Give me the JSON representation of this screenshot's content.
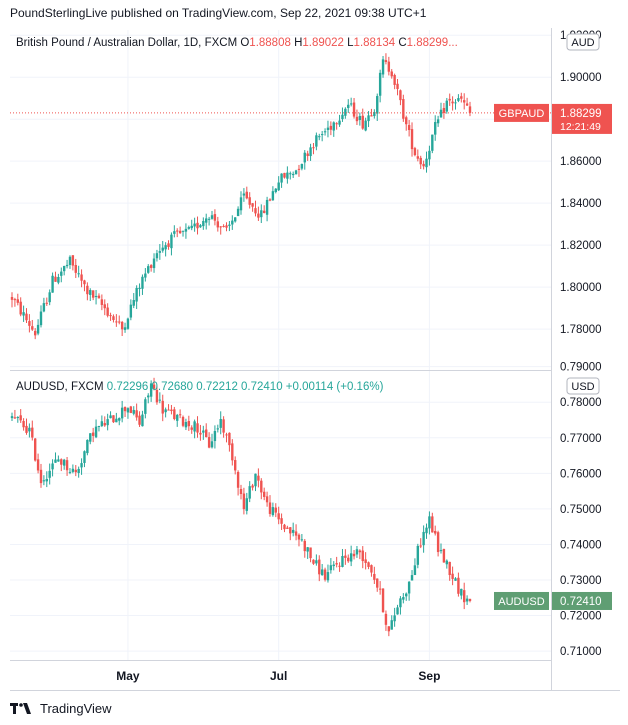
{
  "header": {
    "publisher_line": "PoundSterlingLive published on TradingView.com, Sep 22, 2021 09:38 UTC+1"
  },
  "footer": {
    "brand": "TradingView"
  },
  "colors": {
    "up": "#26a69a",
    "down": "#ef5350",
    "grid": "#f0f3fa",
    "axis_text": "#131722",
    "gbp_label": "#ef5350",
    "aud_label": "#5f9e73",
    "dotted_line": "#ef5350"
  },
  "chart_data": [
    {
      "type": "candlestick",
      "title": "British Pound / Australian Dollar, 1D, FXCM",
      "ohlc_legend": {
        "o_label": "O",
        "o": "1.88808",
        "h_label": "H",
        "h": "1.89022",
        "l_label": "L",
        "l": "1.88134",
        "c_label": "C",
        "c": "1.88299"
      },
      "currency_badge": "AUD",
      "price_label": {
        "symbol": "GBPAUD",
        "value": "1.88299",
        "countdown": "12:21:49"
      },
      "last_value": 1.88299,
      "y_ticks": [
        "1.92000",
        "1.90000",
        "1.88000",
        "1.86000",
        "1.84000",
        "1.82000",
        "1.80000",
        "1.78000"
      ],
      "ylim": [
        1.7605,
        1.9225
      ],
      "trend": [
        [
          0,
          1.795
        ],
        [
          8,
          1.778
        ],
        [
          14,
          1.803
        ],
        [
          20,
          1.812
        ],
        [
          26,
          1.798
        ],
        [
          32,
          1.79
        ],
        [
          38,
          1.78
        ],
        [
          44,
          1.801
        ],
        [
          50,
          1.817
        ],
        [
          56,
          1.824
        ],
        [
          62,
          1.827
        ],
        [
          68,
          1.835
        ],
        [
          74,
          1.826
        ],
        [
          80,
          1.843
        ],
        [
          86,
          1.834
        ],
        [
          92,
          1.851
        ],
        [
          98,
          1.856
        ],
        [
          104,
          1.869
        ],
        [
          110,
          1.877
        ],
        [
          116,
          1.887
        ],
        [
          121,
          1.878
        ],
        [
          125,
          1.886
        ],
        [
          128,
          1.907
        ],
        [
          131,
          1.903
        ],
        [
          136,
          1.877
        ],
        [
          139,
          1.864
        ],
        [
          142,
          1.858
        ],
        [
          146,
          1.876
        ],
        [
          150,
          1.888
        ],
        [
          155,
          1.889
        ],
        [
          158,
          1.883
        ]
      ]
    },
    {
      "type": "candlestick",
      "title": "AUDUSD, FXCM",
      "ohlc_legend": {
        "o": "0.72296",
        "h": "0.72680",
        "l": "0.72212",
        "c": "0.72410",
        "change": "+0.00114 (+0.16%)"
      },
      "currency_badge": "USD",
      "price_label": {
        "symbol": "AUDUSD",
        "value": "0.72410"
      },
      "last_value": 0.7241,
      "y_ticks": [
        "0.79000",
        "0.78000",
        "0.77000",
        "0.76000",
        "0.75000",
        "0.74000",
        "0.73000",
        "0.72000",
        "0.71000"
      ],
      "ylim": [
        0.7075,
        0.7885
      ],
      "trend": [
        [
          0,
          0.776
        ],
        [
          6,
          0.772
        ],
        [
          10,
          0.758
        ],
        [
          16,
          0.764
        ],
        [
          22,
          0.76
        ],
        [
          28,
          0.772
        ],
        [
          34,
          0.775
        ],
        [
          40,
          0.779
        ],
        [
          44,
          0.774
        ],
        [
          48,
          0.785
        ],
        [
          52,
          0.778
        ],
        [
          58,
          0.775
        ],
        [
          64,
          0.773
        ],
        [
          68,
          0.768
        ],
        [
          72,
          0.775
        ],
        [
          76,
          0.765
        ],
        [
          80,
          0.75
        ],
        [
          84,
          0.76
        ],
        [
          88,
          0.751
        ],
        [
          94,
          0.745
        ],
        [
          100,
          0.741
        ],
        [
          104,
          0.735
        ],
        [
          108,
          0.731
        ],
        [
          114,
          0.736
        ],
        [
          120,
          0.738
        ],
        [
          124,
          0.733
        ],
        [
          127,
          0.726
        ],
        [
          130,
          0.715
        ],
        [
          133,
          0.723
        ],
        [
          137,
          0.729
        ],
        [
          141,
          0.741
        ],
        [
          144,
          0.747
        ],
        [
          147,
          0.739
        ],
        [
          151,
          0.733
        ],
        [
          155,
          0.726
        ],
        [
          158,
          0.724
        ]
      ]
    }
  ],
  "x_ticks": [
    {
      "label": "May",
      "index": 40
    },
    {
      "label": "Jul",
      "index": 92
    },
    {
      "label": "Sep",
      "index": 144
    }
  ]
}
